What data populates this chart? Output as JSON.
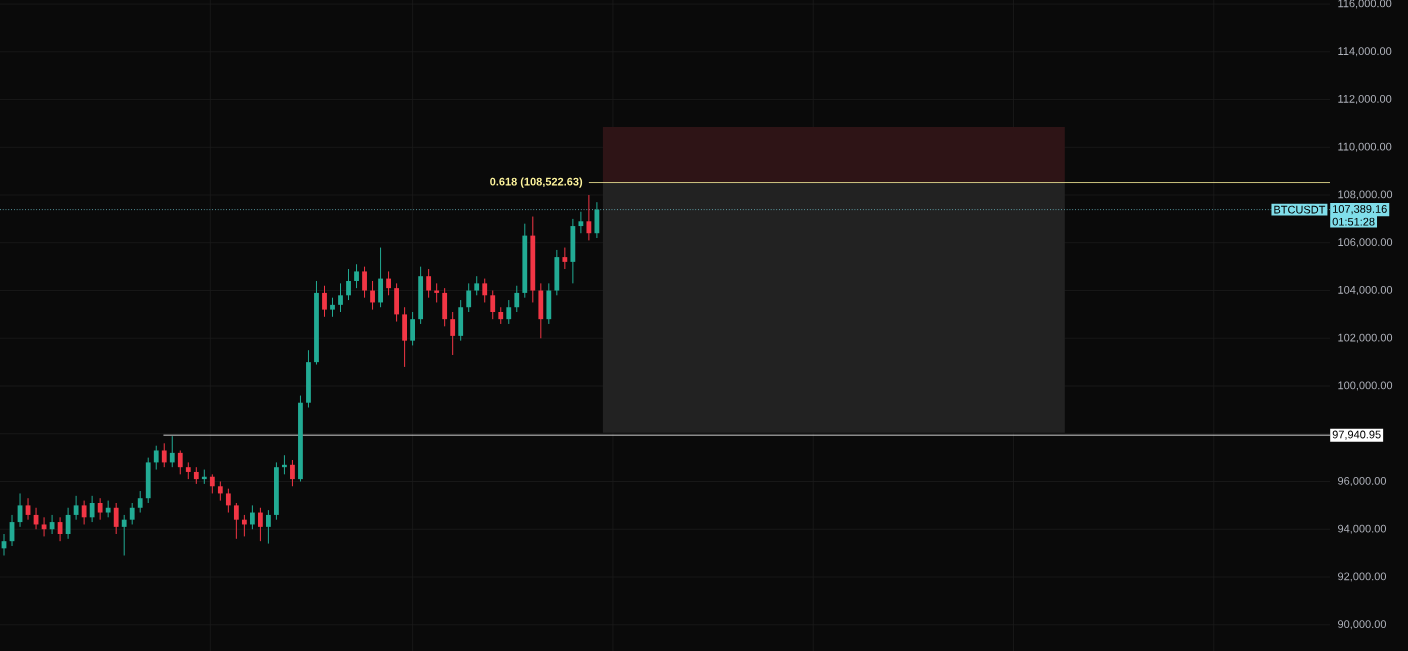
{
  "chart_data": {
    "type": "candlestick",
    "categories": [
      null,
      null,
      null,
      null,
      null,
      null,
      null,
      null,
      null,
      null,
      null,
      null,
      null,
      null,
      null,
      null,
      null,
      null,
      null,
      null,
      null,
      null,
      null,
      null,
      null,
      null,
      null,
      null,
      null,
      null,
      null,
      null,
      null,
      null,
      null,
      null,
      null,
      null,
      null,
      null,
      null,
      null,
      null,
      null,
      null,
      null,
      null,
      null,
      null,
      null,
      null,
      null,
      null,
      null,
      null,
      null,
      null,
      null,
      null,
      null,
      null,
      null,
      null,
      null,
      null,
      null,
      null,
      null,
      null,
      null,
      null,
      null,
      null,
      null,
      null,
      null,
      null,
      null,
      null,
      null,
      null,
      null,
      null,
      null,
      null,
      null,
      null,
      null,
      null,
      null,
      null,
      null,
      null,
      null,
      null,
      null,
      null,
      null,
      null,
      null,
      null,
      null,
      null,
      null,
      null,
      null,
      null,
      null,
      null,
      null,
      null,
      null,
      null,
      null,
      null,
      null,
      null,
      null,
      null,
      null,
      null,
      null,
      null,
      null,
      null,
      null,
      null,
      null,
      null,
      null,
      null,
      null,
      null,
      null,
      null,
      null,
      null,
      null,
      null,
      null,
      null,
      null,
      null,
      null,
      null,
      null,
      null,
      null,
      null,
      null,
      null,
      null,
      null,
      null,
      null,
      null,
      null,
      null,
      null,
      null,
      null,
      null,
      null,
      null,
      null,
      null
    ],
    "ohlc": [
      [
        93200,
        93800,
        92900,
        93500
      ],
      [
        93500,
        94600,
        93300,
        94300
      ],
      [
        94300,
        95500,
        94100,
        95000
      ],
      [
        95000,
        95300,
        94400,
        94600
      ],
      [
        94600,
        94900,
        94000,
        94200
      ],
      [
        94200,
        94500,
        93700,
        94000
      ],
      [
        94000,
        94600,
        93800,
        94300
      ],
      [
        94300,
        94500,
        93500,
        93800
      ],
      [
        93800,
        94900,
        93600,
        94600
      ],
      [
        94600,
        95400,
        94400,
        95000
      ],
      [
        95000,
        95200,
        94200,
        94500
      ],
      [
        94500,
        95400,
        94300,
        95100
      ],
      [
        95100,
        95300,
        94400,
        94700
      ],
      [
        94700,
        95200,
        94500,
        94900
      ],
      [
        94900,
        95100,
        93800,
        94100
      ],
      [
        94100,
        94600,
        92900,
        94400
      ],
      [
        94400,
        95100,
        94200,
        94900
      ],
      [
        94900,
        95600,
        94700,
        95300
      ],
      [
        95300,
        97000,
        95100,
        96800
      ],
      [
        96800,
        97500,
        96500,
        97300
      ],
      [
        97300,
        97600,
        96600,
        96800
      ],
      [
        96800,
        97900,
        96600,
        97200
      ],
      [
        97200,
        97300,
        96300,
        96600
      ],
      [
        96600,
        96800,
        96100,
        96400
      ],
      [
        96400,
        96600,
        95900,
        96100
      ],
      [
        96100,
        96500,
        95900,
        96200
      ],
      [
        96200,
        96300,
        95500,
        95800
      ],
      [
        95800,
        96000,
        95200,
        95500
      ],
      [
        95500,
        95700,
        94700,
        95000
      ],
      [
        95000,
        95100,
        93600,
        94400
      ],
      [
        94400,
        94600,
        93700,
        94200
      ],
      [
        94200,
        95000,
        94000,
        94700
      ],
      [
        94700,
        94900,
        93500,
        94100
      ],
      [
        94100,
        94800,
        93400,
        94600
      ],
      [
        94600,
        96800,
        94400,
        96600
      ],
      [
        96600,
        97100,
        96300,
        96700
      ],
      [
        96700,
        96900,
        95800,
        96100
      ],
      [
        96100,
        99600,
        96000,
        99300
      ],
      [
        99300,
        101500,
        99100,
        101000
      ],
      [
        101000,
        104400,
        100900,
        103900
      ],
      [
        103900,
        104200,
        102900,
        103200
      ],
      [
        103200,
        103700,
        102900,
        103400
      ],
      [
        103400,
        104300,
        103100,
        103800
      ],
      [
        103800,
        104900,
        103600,
        104400
      ],
      [
        104400,
        105100,
        104100,
        104800
      ],
      [
        104800,
        105000,
        103700,
        104000
      ],
      [
        104000,
        104400,
        103200,
        103500
      ],
      [
        103500,
        105800,
        103300,
        104500
      ],
      [
        104500,
        104800,
        103800,
        104100
      ],
      [
        104100,
        104300,
        102700,
        103000
      ],
      [
        103000,
        103300,
        100800,
        101900
      ],
      [
        101900,
        103100,
        101700,
        102800
      ],
      [
        102800,
        105000,
        102600,
        104600
      ],
      [
        104600,
        104900,
        103700,
        104000
      ],
      [
        104000,
        104300,
        103500,
        103900
      ],
      [
        103900,
        104100,
        102500,
        102800
      ],
      [
        102800,
        103100,
        101300,
        102100
      ],
      [
        102100,
        103600,
        101900,
        103300
      ],
      [
        103300,
        104300,
        103100,
        104000
      ],
      [
        104000,
        104600,
        103800,
        104300
      ],
      [
        104300,
        104500,
        103500,
        103800
      ],
      [
        103800,
        104000,
        102800,
        103100
      ],
      [
        103100,
        103300,
        102600,
        102800
      ],
      [
        102800,
        103600,
        102600,
        103300
      ],
      [
        103300,
        104200,
        103100,
        103900
      ],
      [
        103900,
        106800,
        103700,
        106300
      ],
      [
        106300,
        107100,
        103500,
        104000
      ],
      [
        104000,
        104300,
        102000,
        102800
      ],
      [
        102800,
        104300,
        102600,
        104000
      ],
      [
        104000,
        105700,
        103800,
        105400
      ],
      [
        105400,
        105800,
        104900,
        105200
      ],
      [
        105200,
        107000,
        104300,
        106700
      ],
      [
        106700,
        107300,
        106400,
        106900
      ],
      [
        106900,
        108000,
        106100,
        106400
      ],
      [
        106400,
        107700,
        106200,
        107389.16
      ],
      null,
      null,
      null,
      null,
      null,
      null,
      null,
      null,
      null,
      null,
      null,
      null,
      null,
      null,
      null,
      null,
      null,
      null,
      null,
      null,
      null,
      null,
      null,
      null,
      null,
      null,
      null,
      null,
      null,
      null,
      null,
      null,
      null,
      null,
      null,
      null,
      null,
      null,
      null,
      null,
      null,
      null,
      null,
      null,
      null,
      null,
      null,
      null,
      null,
      null,
      null,
      null,
      null,
      null,
      null,
      null,
      null,
      null,
      null,
      null,
      null,
      null,
      null,
      null,
      null,
      null,
      null,
      null,
      null,
      null,
      null,
      null,
      null,
      null,
      null,
      null,
      null,
      null,
      null,
      null,
      null,
      null,
      null,
      null,
      null,
      null,
      null,
      null,
      null,
      null,
      null
    ],
    "colors": [
      "#22ab94",
      "#22ab94",
      "#22ab94",
      "#f23645",
      "#f23645",
      "#f23645",
      "#22ab94",
      "#f23645",
      "#22ab94",
      "#22ab94",
      "#f23645",
      "#22ab94",
      "#f23645",
      "#22ab94",
      "#f23645",
      "#22ab94",
      "#22ab94",
      "#22ab94",
      "#22ab94",
      "#22ab94",
      "#f23645",
      "#22ab94",
      "#f23645",
      "#f23645",
      "#f23645",
      "#22ab94",
      "#f23645",
      "#f23645",
      "#f23645",
      "#f23645",
      "#f23645",
      "#22ab94",
      "#f23645",
      "#22ab94",
      "#22ab94",
      "#22ab94",
      "#f23645",
      "#22ab94",
      "#22ab94",
      "#22ab94",
      "#f23645",
      "#22ab94",
      "#22ab94",
      "#22ab94",
      "#22ab94",
      "#f23645",
      "#f23645",
      "#22ab94",
      "#f23645",
      "#f23645",
      "#f23645",
      "#22ab94",
      "#22ab94",
      "#f23645",
      "#f23645",
      "#f23645",
      "#f23645",
      "#22ab94",
      "#22ab94",
      "#22ab94",
      "#f23645",
      "#f23645",
      "#f23645",
      "#22ab94",
      "#22ab94",
      "#22ab94",
      "#f23645",
      "#f23645",
      "#22ab94",
      "#22ab94",
      "#f23645",
      "#22ab94",
      "#22ab94",
      "#f23645",
      "#22ab94",
      null,
      null,
      null,
      null,
      null,
      null,
      null,
      null,
      null,
      null,
      null,
      null,
      null,
      null,
      null,
      null,
      null,
      null,
      null,
      null,
      null,
      null,
      null,
      null,
      null,
      null,
      null,
      null,
      null,
      null,
      null,
      null,
      null,
      null,
      null,
      null,
      null,
      null,
      null,
      null,
      null,
      null,
      null,
      null,
      null,
      null,
      null,
      null,
      null,
      null,
      null,
      null,
      null,
      null,
      null,
      null,
      null,
      null,
      null,
      null,
      null,
      null,
      null,
      null,
      null,
      null,
      null,
      null,
      null,
      null,
      null,
      null,
      null,
      null,
      null,
      null,
      null,
      null,
      null,
      null,
      null,
      null,
      null,
      null,
      null,
      null,
      null,
      null,
      null,
      null,
      null
    ],
    "ylim": [
      88900,
      116170
    ],
    "yticks": [
      {
        "value": 90000,
        "label": "90,000.00"
      },
      {
        "value": 92000,
        "label": "92,000.00"
      },
      {
        "value": 94000,
        "label": "94,000.00"
      },
      {
        "value": 96000,
        "label": "96,000.00"
      },
      {
        "value": 98000,
        "label": null
      },
      {
        "value": 100000,
        "label": "100,000.00"
      },
      {
        "value": 102000,
        "label": "102,000.00"
      },
      {
        "value": 104000,
        "label": "104,000.00"
      },
      {
        "value": 106000,
        "label": "106,000.00"
      },
      {
        "value": 108000,
        "label": "108,000.00"
      },
      {
        "value": 110000,
        "label": "110,000.00"
      },
      {
        "value": 112000,
        "label": "112,000.00"
      },
      {
        "value": 114000,
        "label": "114,000.00"
      },
      {
        "value": 116000,
        "label": "116,000.00"
      }
    ],
    "tick_labels": "y",
    "grid": true,
    "ref_lines": [
      {
        "axis": "y",
        "value": 97940.95,
        "label": "97,940.95",
        "color": "#ffffff"
      },
      {
        "axis": "y",
        "value": 108522.63,
        "label": "0.618 (108,522.63)",
        "color": "#fff59d"
      },
      {
        "axis": "y",
        "value": 107389.16,
        "label": "107,389.16",
        "color": "#80deea",
        "line_style": "dotted"
      }
    ],
    "bands": [
      {
        "axis": "y",
        "from": 108522.63,
        "to": 110850,
        "color": "#2e1416"
      },
      {
        "axis": "y",
        "from": 98040,
        "to": 108522.63,
        "color": "#222222"
      }
    ],
    "annotations": [
      {
        "text": "BTCUSDT",
        "y": 107389.16
      },
      "01:51:28"
    ]
  }
}
